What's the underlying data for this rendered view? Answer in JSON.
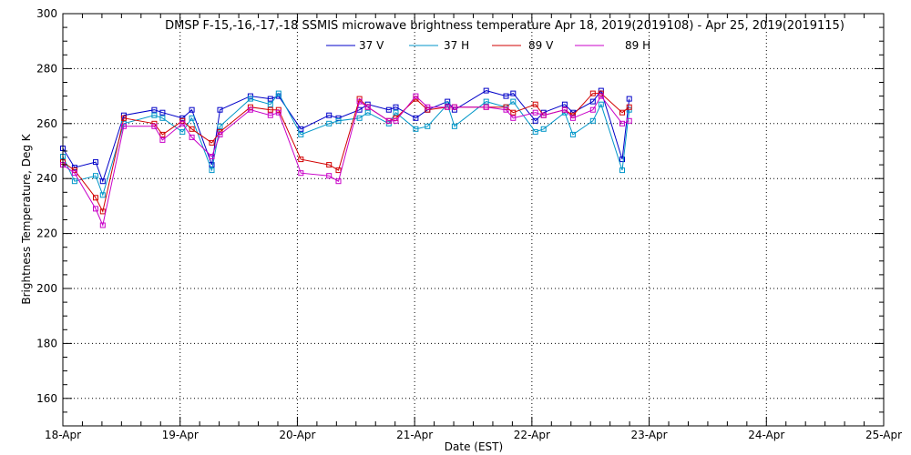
{
  "chart_data": {
    "type": "line",
    "title": "DMSP F-15,-16,-17,-18 SSMIS microwave brightness temperature Apr 18, 2019(2019108) - Apr 25, 2019(2019115)",
    "xlabel": "Date (EST)",
    "ylabel": "Brightness Temperature, Deg K",
    "xlim": [
      0,
      7
    ],
    "ylim": [
      150,
      300
    ],
    "x_ticks": [
      0,
      1,
      2,
      3,
      4,
      5,
      6,
      7
    ],
    "x_tick_labels": [
      "18-Apr",
      "19-Apr",
      "20-Apr",
      "21-Apr",
      "22-Apr",
      "23-Apr",
      "24-Apr",
      "25-Apr"
    ],
    "y_ticks": [
      160,
      180,
      200,
      220,
      240,
      260,
      280,
      300
    ],
    "grid": true,
    "legend": "top",
    "x": [
      0.0,
      0.1,
      0.28,
      0.34,
      0.52,
      0.78,
      0.85,
      1.02,
      1.1,
      1.27,
      1.34,
      1.6,
      1.77,
      1.84,
      2.03,
      2.27,
      2.35,
      2.53,
      2.6,
      2.78,
      2.84,
      3.01,
      3.11,
      3.28,
      3.34,
      3.61,
      3.78,
      3.84,
      4.03,
      4.1,
      4.28,
      4.35,
      4.52,
      4.59,
      4.77,
      4.83
    ],
    "series": [
      {
        "name": "37 V",
        "color": "#0000c8",
        "values": [
          251,
          244,
          246,
          239,
          263,
          265,
          264,
          262,
          265,
          245,
          265,
          270,
          269,
          270,
          258,
          263,
          262,
          265,
          267,
          265,
          266,
          262,
          265,
          268,
          265,
          272,
          270,
          271,
          261,
          264,
          267,
          264,
          268,
          272,
          247,
          269
        ]
      },
      {
        "name": "37 H",
        "color": "#0096c8",
        "values": [
          248,
          239,
          241,
          234,
          260,
          263,
          262,
          257,
          262,
          243,
          259,
          269,
          267,
          271,
          256,
          260,
          261,
          262,
          264,
          260,
          264,
          258,
          259,
          267,
          259,
          268,
          266,
          268,
          257,
          258,
          264,
          256,
          261,
          267,
          243,
          265
        ]
      },
      {
        "name": "89 V",
        "color": "#d20000",
        "values": [
          246,
          243,
          233,
          228,
          262,
          260,
          256,
          261,
          258,
          253,
          257,
          266,
          265,
          265,
          247,
          245,
          243,
          269,
          266,
          261,
          262,
          269,
          265,
          266,
          266,
          266,
          266,
          264,
          267,
          263,
          265,
          263,
          271,
          271,
          264,
          266
        ]
      },
      {
        "name": "89 H",
        "color": "#c800c8",
        "values": [
          245,
          242,
          229,
          223,
          259,
          259,
          254,
          260,
          255,
          248,
          256,
          265,
          263,
          264,
          242,
          241,
          239,
          268,
          266,
          261,
          261,
          270,
          266,
          266,
          266,
          266,
          265,
          262,
          264,
          263,
          265,
          262,
          265,
          270,
          260,
          261
        ]
      }
    ]
  }
}
